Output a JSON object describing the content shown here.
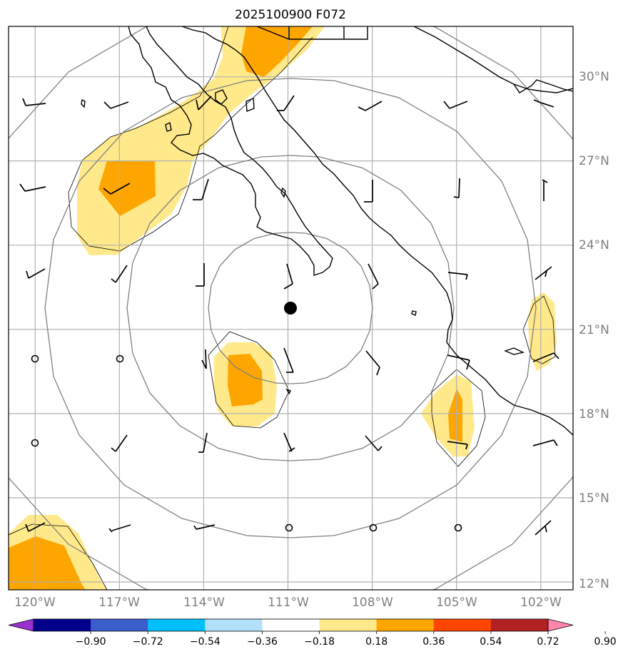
{
  "title": "2025100900 F072",
  "colors": {
    "fill_level1": "#ffe98a",
    "fill_level2": "#ffa500",
    "grid": "#b0b0b0",
    "range_ring": "#808080",
    "coast": "#000000"
  },
  "map": {
    "lon_range": [
      -121.1,
      -101.0
    ],
    "lat_range": [
      11.9,
      32.0
    ],
    "center_marker": {
      "lon": -111.0,
      "lat": 21.75
    },
    "lat_labels": [
      {
        "lat": 30,
        "text": "30°N"
      },
      {
        "lat": 27,
        "text": "27°N"
      },
      {
        "lat": 24,
        "text": "24°N"
      },
      {
        "lat": 21,
        "text": "21°N"
      },
      {
        "lat": 18,
        "text": "18°N"
      },
      {
        "lat": 15,
        "text": "15°N"
      },
      {
        "lat": 12,
        "text": "12°N"
      }
    ],
    "lon_labels": [
      {
        "lon": -120,
        "text": "120°W"
      },
      {
        "lon": -117,
        "text": "117°W"
      },
      {
        "lon": -114,
        "text": "114°W"
      },
      {
        "lon": -111,
        "text": "111°W"
      },
      {
        "lon": -108,
        "text": "108°W"
      },
      {
        "lon": -105,
        "text": "105°W"
      },
      {
        "lon": -102,
        "text": "102°W"
      }
    ]
  },
  "colorbar": {
    "ticks": [
      "−0.90",
      "−0.72",
      "−0.54",
      "−0.36",
      "−0.18",
      "0.18",
      "0.36",
      "0.54",
      "0.72",
      "0.90"
    ],
    "colors": [
      "#9b30d0",
      "#00008b",
      "#3a5fcd",
      "#00bfff",
      "#b0e0fa",
      "#ffffff",
      "#ffe98a",
      "#ffa500",
      "#ff4500",
      "#b22222",
      "#ff85ad"
    ]
  }
}
